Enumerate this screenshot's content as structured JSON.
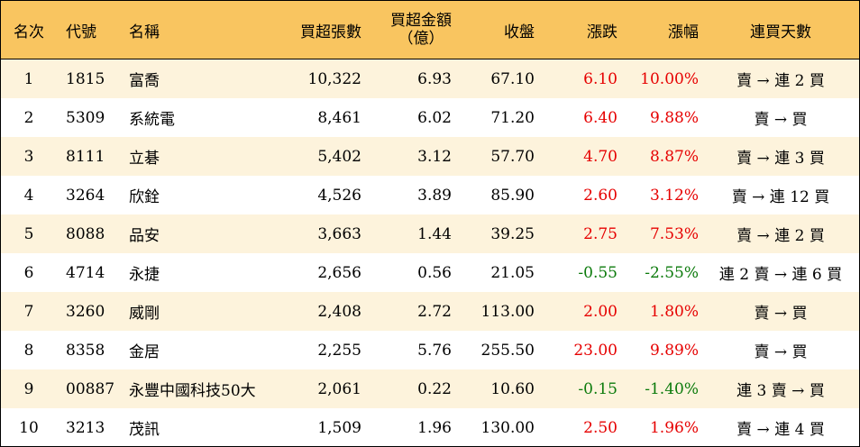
{
  "headers": {
    "rank": "名次",
    "code": "代號",
    "name": "名稱",
    "volume": "買超張數",
    "amount_line1": "買超金額",
    "amount_line2": "（億）",
    "close": "收盤",
    "change": "漲跌",
    "pct": "漲幅",
    "streak": "連買天數"
  },
  "colors": {
    "header_bg": "#f9c560",
    "alt_row_bg": "#fdf3dc",
    "up": "#e60000",
    "down": "#0b7a0b"
  },
  "rows": [
    {
      "rank": "1",
      "code": "1815",
      "name": "富喬",
      "volume": "10,322",
      "amount": "6.93",
      "close": "67.10",
      "change": "6.10",
      "pct": "10.00%",
      "streak": "賣 → 連 2 買",
      "dir": "up"
    },
    {
      "rank": "2",
      "code": "5309",
      "name": "系統電",
      "volume": "8,461",
      "amount": "6.02",
      "close": "71.20",
      "change": "6.40",
      "pct": "9.88%",
      "streak": "賣 → 買",
      "dir": "up"
    },
    {
      "rank": "3",
      "code": "8111",
      "name": "立碁",
      "volume": "5,402",
      "amount": "3.12",
      "close": "57.70",
      "change": "4.70",
      "pct": "8.87%",
      "streak": "賣 → 連 3 買",
      "dir": "up"
    },
    {
      "rank": "4",
      "code": "3264",
      "name": "欣銓",
      "volume": "4,526",
      "amount": "3.89",
      "close": "85.90",
      "change": "2.60",
      "pct": "3.12%",
      "streak": "賣 → 連 12 買",
      "dir": "up"
    },
    {
      "rank": "5",
      "code": "8088",
      "name": "品安",
      "volume": "3,663",
      "amount": "1.44",
      "close": "39.25",
      "change": "2.75",
      "pct": "7.53%",
      "streak": "賣 → 連 2 買",
      "dir": "up"
    },
    {
      "rank": "6",
      "code": "4714",
      "name": "永捷",
      "volume": "2,656",
      "amount": "0.56",
      "close": "21.05",
      "change": "-0.55",
      "pct": "-2.55%",
      "streak": "連 2 賣 → 連 6 買",
      "dir": "down"
    },
    {
      "rank": "7",
      "code": "3260",
      "name": "威剛",
      "volume": "2,408",
      "amount": "2.72",
      "close": "113.00",
      "change": "2.00",
      "pct": "1.80%",
      "streak": "賣 → 買",
      "dir": "up"
    },
    {
      "rank": "8",
      "code": "8358",
      "name": "金居",
      "volume": "2,255",
      "amount": "5.76",
      "close": "255.50",
      "change": "23.00",
      "pct": "9.89%",
      "streak": "賣 → 買",
      "dir": "up"
    },
    {
      "rank": "9",
      "code": "00887",
      "name": "永豐中國科技50大",
      "volume": "2,061",
      "amount": "0.22",
      "close": "10.60",
      "change": "-0.15",
      "pct": "-1.40%",
      "streak": "連 3 賣 → 買",
      "dir": "down"
    },
    {
      "rank": "10",
      "code": "3213",
      "name": "茂訊",
      "volume": "1,509",
      "amount": "1.96",
      "close": "130.00",
      "change": "2.50",
      "pct": "1.96%",
      "streak": "賣 → 連 4 買",
      "dir": "up"
    }
  ]
}
